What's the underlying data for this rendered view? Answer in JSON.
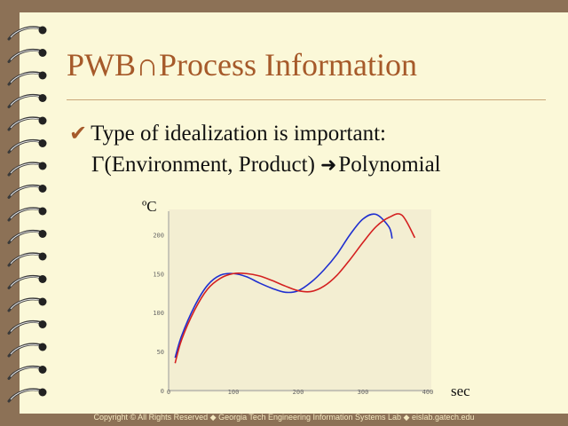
{
  "slide": {
    "title": "PWB∩Process Information",
    "bullet_check": "✔",
    "bullet_text": "Type of idealization is important:",
    "subline_text": "Γ(Environment, Product)",
    "subline_arrow": "➜",
    "subline_result": "Polynomial",
    "footer": "Copyright © All Rights Reserved  ◆  Georgia Tech Engineering Information Systems Lab ◆ eislab.gatech.edu"
  },
  "colors": {
    "title": "#a65a2a",
    "series_blue": "#1f2fd0",
    "series_red": "#d42020",
    "frame": "#8c7156",
    "slide_bg": "#fbf8d8"
  },
  "chart_data": {
    "type": "line",
    "xlabel": "sec",
    "ylabel": "ºC",
    "xlim": [
      0,
      400
    ],
    "ylim": [
      0,
      230
    ],
    "xticks": [
      0,
      100,
      200,
      300,
      400
    ],
    "yticks": [
      0,
      50,
      100,
      150,
      200
    ],
    "series": [
      {
        "color": "#1f2fd0",
        "x": [
          10,
          20,
          40,
          60,
          80,
          100,
          120,
          140,
          160,
          180,
          200,
          220,
          240,
          260,
          280,
          300,
          320,
          340,
          345
        ],
        "y": [
          42,
          70,
          108,
          135,
          148,
          150,
          146,
          138,
          131,
          126,
          128,
          139,
          155,
          175,
          200,
          220,
          226,
          210,
          195
        ]
      },
      {
        "color": "#d42020",
        "x": [
          10,
          20,
          40,
          60,
          80,
          100,
          120,
          140,
          160,
          180,
          200,
          220,
          240,
          260,
          280,
          300,
          320,
          340,
          360,
          380
        ],
        "y": [
          35,
          65,
          103,
          130,
          144,
          150,
          150,
          147,
          141,
          134,
          128,
          127,
          134,
          148,
          168,
          190,
          210,
          222,
          225,
          196
        ]
      }
    ]
  }
}
